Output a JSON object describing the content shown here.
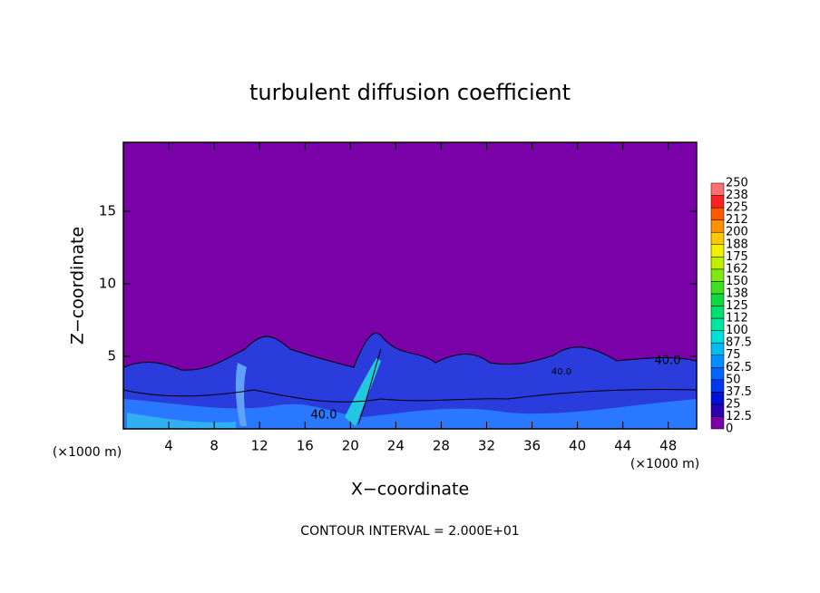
{
  "chart_data": {
    "type": "contour",
    "title": "turbulent diffusion coefficient",
    "xlabel": "X−coordinate",
    "ylabel": "Z−coordinate",
    "xunit": "(×1000 m)",
    "yunit": "(×1000 m)",
    "xlim": [
      0,
      50.5
    ],
    "xticks": [
      4,
      8,
      12,
      16,
      20,
      24,
      28,
      32,
      36,
      40,
      44,
      48
    ],
    "ylim": [
      0,
      19.75
    ],
    "yticks": [
      5,
      10,
      15
    ],
    "colorbar": {
      "levels": [
        0,
        12.5,
        25,
        37.5,
        50,
        62.5,
        75,
        87.5,
        100,
        112,
        125,
        138,
        150,
        162,
        175,
        188,
        200,
        212,
        225,
        238,
        250
      ],
      "colors": [
        "#7a00a8",
        "#2a00b4",
        "#0010d8",
        "#0038f0",
        "#0064ff",
        "#0090ff",
        "#00bcf0",
        "#00e0d8",
        "#00e8a0",
        "#00e070",
        "#10d840",
        "#40e020",
        "#80e810",
        "#c0f000",
        "#f0f000",
        "#ffc800",
        "#ff9000",
        "#ff5a00",
        "#ff2020",
        "#ff7070"
      ]
    },
    "contour_labels": [
      "40.0",
      "40.0",
      "40.0"
    ],
    "footnote": "CONTOUR INTERVAL = 2.000E+01"
  }
}
